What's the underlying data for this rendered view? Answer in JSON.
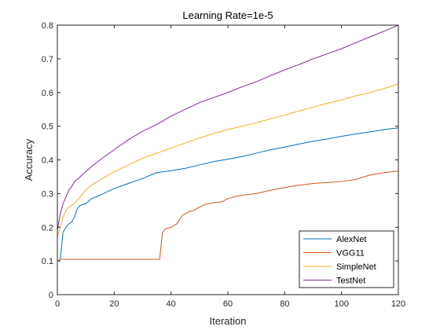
{
  "chart_data": {
    "type": "line",
    "title": "Learning Rate=1e-5",
    "xlabel": "Iteration",
    "ylabel": "Accuracy",
    "xlim": [
      0,
      120
    ],
    "ylim": [
      0,
      0.8
    ],
    "xticks": [
      0,
      20,
      40,
      60,
      80,
      100,
      120
    ],
    "yticks": [
      0,
      0.1,
      0.2,
      0.3,
      0.4,
      0.5,
      0.6,
      0.7,
      0.8
    ],
    "xtick_labels": [
      "0",
      "20",
      "40",
      "60",
      "80",
      "100",
      "120"
    ],
    "ytick_labels": [
      "0",
      "0.1",
      "0.2",
      "0.3",
      "0.4",
      "0.5",
      "0.6",
      "0.7",
      "0.8"
    ],
    "grid": false,
    "legend_position": "bottom-right",
    "series": [
      {
        "name": "AlexNet",
        "color": "#0072BD",
        "points": [
          [
            0,
            0.1
          ],
          [
            1,
            0.105
          ],
          [
            2,
            0.185
          ],
          [
            3,
            0.2
          ],
          [
            4,
            0.21
          ],
          [
            5,
            0.215
          ],
          [
            6,
            0.23
          ],
          [
            7,
            0.255
          ],
          [
            8,
            0.265
          ],
          [
            10,
            0.27
          ],
          [
            12,
            0.285
          ],
          [
            15,
            0.295
          ],
          [
            20,
            0.315
          ],
          [
            25,
            0.33
          ],
          [
            30,
            0.345
          ],
          [
            35,
            0.362
          ],
          [
            40,
            0.368
          ],
          [
            45,
            0.375
          ],
          [
            50,
            0.385
          ],
          [
            55,
            0.395
          ],
          [
            60,
            0.402
          ],
          [
            65,
            0.41
          ],
          [
            70,
            0.42
          ],
          [
            75,
            0.43
          ],
          [
            80,
            0.438
          ],
          [
            85,
            0.447
          ],
          [
            90,
            0.455
          ],
          [
            95,
            0.462
          ],
          [
            100,
            0.47
          ],
          [
            105,
            0.477
          ],
          [
            110,
            0.483
          ],
          [
            115,
            0.49
          ],
          [
            120,
            0.495
          ]
        ]
      },
      {
        "name": "VGG11",
        "color": "#D95319",
        "points": [
          [
            0,
            0.1
          ],
          [
            1,
            0.105
          ],
          [
            10,
            0.105
          ],
          [
            20,
            0.105
          ],
          [
            30,
            0.105
          ],
          [
            36,
            0.105
          ],
          [
            37,
            0.185
          ],
          [
            38,
            0.195
          ],
          [
            40,
            0.2
          ],
          [
            42,
            0.21
          ],
          [
            44,
            0.235
          ],
          [
            46,
            0.245
          ],
          [
            48,
            0.25
          ],
          [
            50,
            0.26
          ],
          [
            52,
            0.268
          ],
          [
            55,
            0.273
          ],
          [
            58,
            0.276
          ],
          [
            60,
            0.285
          ],
          [
            62,
            0.29
          ],
          [
            65,
            0.295
          ],
          [
            70,
            0.3
          ],
          [
            75,
            0.31
          ],
          [
            80,
            0.318
          ],
          [
            85,
            0.325
          ],
          [
            90,
            0.33
          ],
          [
            95,
            0.333
          ],
          [
            100,
            0.336
          ],
          [
            105,
            0.342
          ],
          [
            110,
            0.355
          ],
          [
            115,
            0.362
          ],
          [
            120,
            0.367
          ]
        ]
      },
      {
        "name": "SimpleNet",
        "color": "#EDB120",
        "points": [
          [
            0,
            0.17
          ],
          [
            1,
            0.2
          ],
          [
            2,
            0.23
          ],
          [
            3,
            0.25
          ],
          [
            4,
            0.26
          ],
          [
            6,
            0.27
          ],
          [
            8,
            0.29
          ],
          [
            10,
            0.31
          ],
          [
            12,
            0.325
          ],
          [
            15,
            0.34
          ],
          [
            20,
            0.365
          ],
          [
            25,
            0.385
          ],
          [
            30,
            0.405
          ],
          [
            35,
            0.42
          ],
          [
            40,
            0.435
          ],
          [
            45,
            0.45
          ],
          [
            50,
            0.465
          ],
          [
            55,
            0.478
          ],
          [
            60,
            0.49
          ],
          [
            65,
            0.5
          ],
          [
            70,
            0.51
          ],
          [
            75,
            0.522
          ],
          [
            80,
            0.533
          ],
          [
            85,
            0.545
          ],
          [
            90,
            0.557
          ],
          [
            95,
            0.568
          ],
          [
            100,
            0.578
          ],
          [
            105,
            0.59
          ],
          [
            110,
            0.6
          ],
          [
            115,
            0.612
          ],
          [
            120,
            0.625
          ]
        ]
      },
      {
        "name": "TestNet",
        "color": "#7E2F8E",
        "points": [
          [
            0,
            0.19
          ],
          [
            1,
            0.24
          ],
          [
            2,
            0.27
          ],
          [
            3,
            0.29
          ],
          [
            4,
            0.31
          ],
          [
            5,
            0.32
          ],
          [
            6,
            0.335
          ],
          [
            8,
            0.35
          ],
          [
            10,
            0.365
          ],
          [
            12,
            0.38
          ],
          [
            15,
            0.4
          ],
          [
            20,
            0.43
          ],
          [
            25,
            0.46
          ],
          [
            30,
            0.485
          ],
          [
            35,
            0.505
          ],
          [
            40,
            0.53
          ],
          [
            45,
            0.55
          ],
          [
            50,
            0.57
          ],
          [
            55,
            0.585
          ],
          [
            60,
            0.6
          ],
          [
            65,
            0.617
          ],
          [
            70,
            0.632
          ],
          [
            75,
            0.65
          ],
          [
            80,
            0.667
          ],
          [
            85,
            0.683
          ],
          [
            90,
            0.7
          ],
          [
            95,
            0.715
          ],
          [
            100,
            0.73
          ],
          [
            105,
            0.748
          ],
          [
            110,
            0.765
          ],
          [
            115,
            0.782
          ],
          [
            120,
            0.8
          ]
        ]
      }
    ]
  }
}
